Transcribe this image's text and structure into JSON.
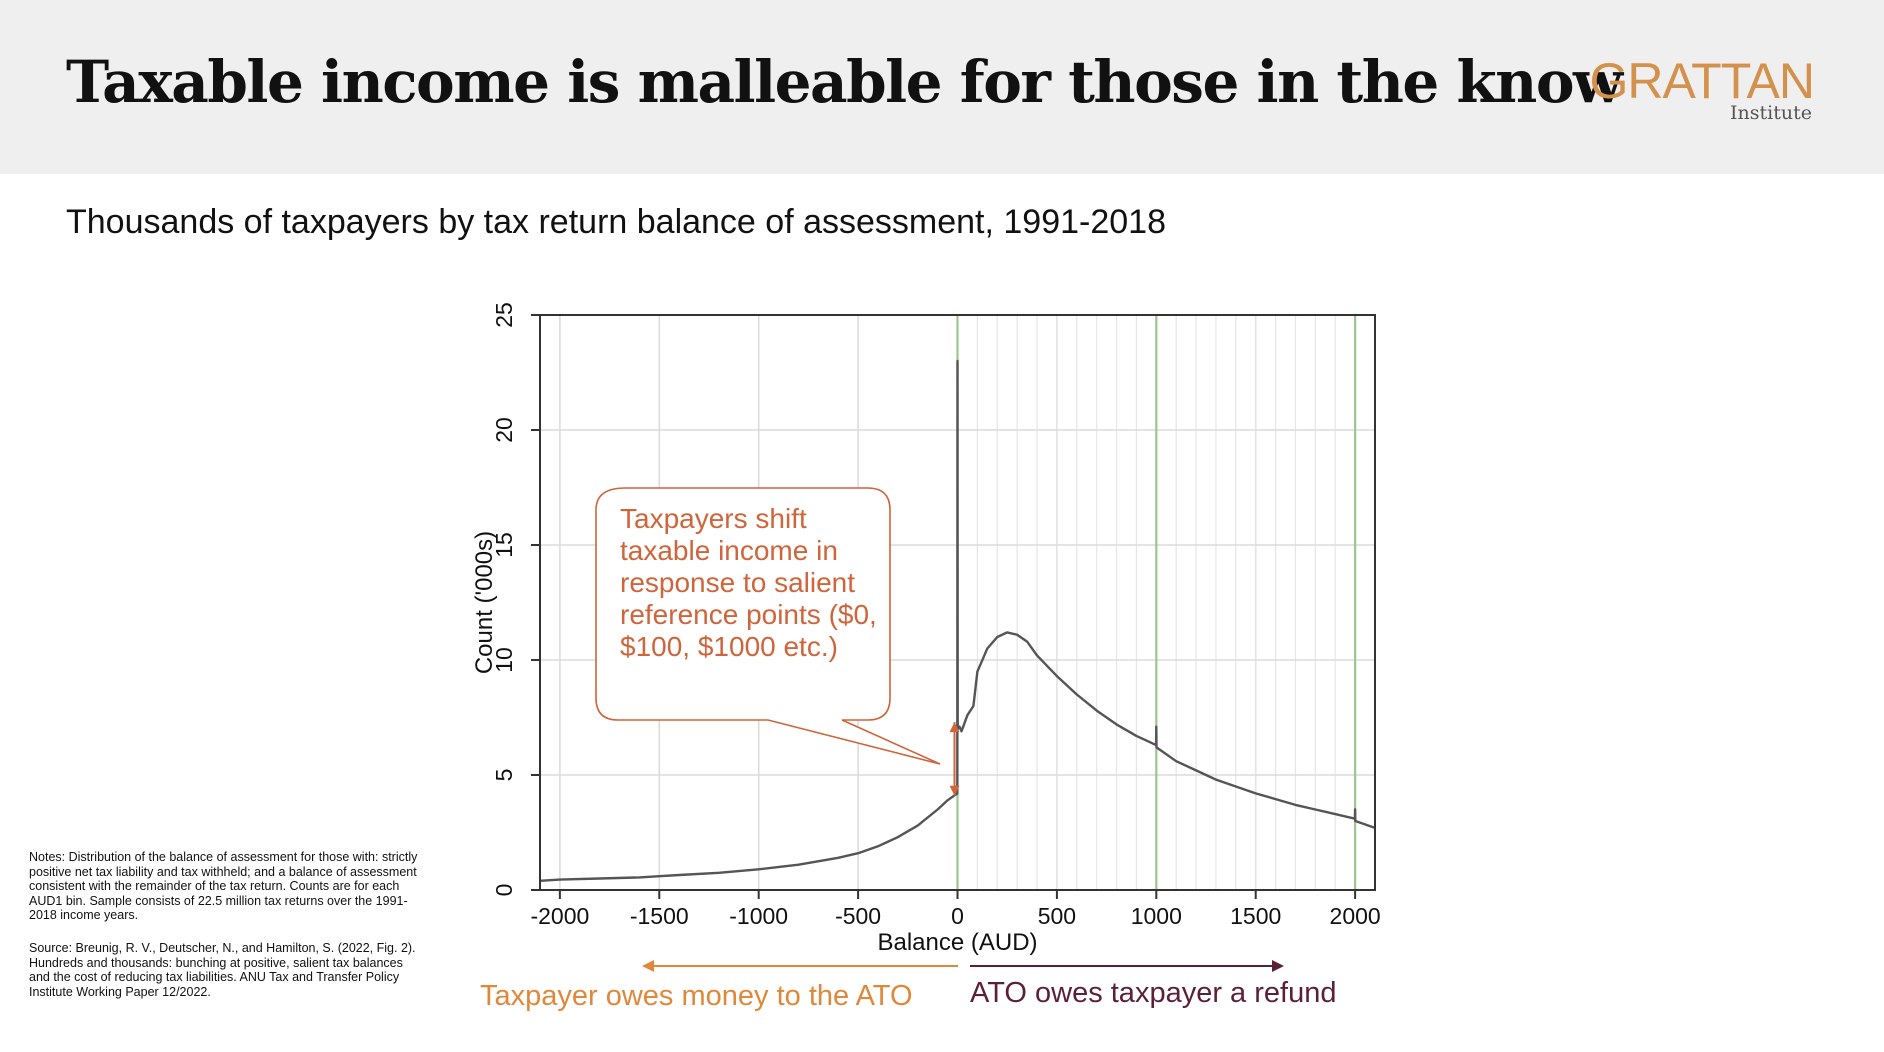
{
  "header": {
    "title": "Taxable income is malleable for those in the know",
    "logo_main": "GRATTAN",
    "logo_sub": "Institute"
  },
  "subtitle": "Thousands of taxpayers by tax return balance of assessment, 1991-2018",
  "notes": {
    "notes_text": "Notes: Distribution of the balance of assessment for those with: strictly positive net tax liability and tax withheld; and a balance of assessment consistent with the remainder of the tax return. Counts are for each AUD1 bin. Sample consists of 22.5 million tax returns over the 1991-2018 income years.",
    "source_text": "Source: Breunig, R. V., Deutscher, N., and Hamilton, S. (2022, Fig. 2). Hundreds and thousands: bunching at positive, salient tax balances and the cost of reducing tax liabilities. ANU Tax and Transfer Policy Institute Working Paper 12/2022."
  },
  "annotations": {
    "callout": "Taxpayers shift taxable income in response to salient reference points ($0, $100, $1000 etc.)",
    "owes_label": "Taxpayer owes money to the ATO",
    "refund_label": "ATO owes taxpayer a refund"
  },
  "colors": {
    "owes": "#e0883a",
    "refund": "#5c1f3a",
    "callout": "#d0643a",
    "series": "#555555",
    "reference_lines": "#9cc68d"
  },
  "chart_data": {
    "type": "line",
    "xlabel": "Balance (AUD)",
    "ylabel": "Count ('000s)",
    "xlim": [
      -2100,
      2100
    ],
    "ylim": [
      0,
      25
    ],
    "x_ticks": [
      -2000,
      -1500,
      -1000,
      -500,
      0,
      500,
      1000,
      1500,
      2000
    ],
    "x_tick_labels": [
      "-2000",
      "-1500",
      "-1000",
      "-500",
      "0",
      "500",
      "1000",
      "1500",
      "2000"
    ],
    "y_ticks": [
      0,
      5,
      10,
      15,
      20,
      25
    ],
    "y_tick_labels": [
      "0",
      "5",
      "10",
      "15",
      "20",
      "25"
    ],
    "grid": true,
    "reference_lines_x": [
      0,
      1000,
      2000
    ],
    "series": [
      {
        "x": [
          -2100,
          -2000,
          -1800,
          -1600,
          -1500,
          -1400,
          -1200,
          -1000,
          -800,
          -600,
          -500,
          -400,
          -300,
          -200,
          -100,
          -50,
          -1,
          0,
          1,
          10,
          20,
          50,
          80,
          100,
          120,
          150,
          200,
          250,
          300,
          350,
          400,
          500,
          600,
          700,
          800,
          900,
          999,
          1000,
          1001,
          1100,
          1200,
          1300,
          1400,
          1500,
          1600,
          1700,
          1800,
          1900,
          1999,
          2000,
          2001,
          2100
        ],
        "y": [
          0.4,
          0.45,
          0.5,
          0.55,
          0.6,
          0.65,
          0.75,
          0.9,
          1.1,
          1.4,
          1.6,
          1.9,
          2.3,
          2.8,
          3.5,
          3.9,
          4.2,
          23.0,
          7.0,
          7.1,
          6.9,
          7.6,
          8.0,
          9.5,
          9.9,
          10.5,
          11.0,
          11.2,
          11.1,
          10.8,
          10.2,
          9.3,
          8.5,
          7.8,
          7.2,
          6.7,
          6.3,
          7.1,
          6.2,
          5.6,
          5.2,
          4.8,
          4.5,
          4.2,
          3.95,
          3.7,
          3.5,
          3.3,
          3.1,
          3.5,
          3.0,
          2.7
        ]
      }
    ]
  }
}
